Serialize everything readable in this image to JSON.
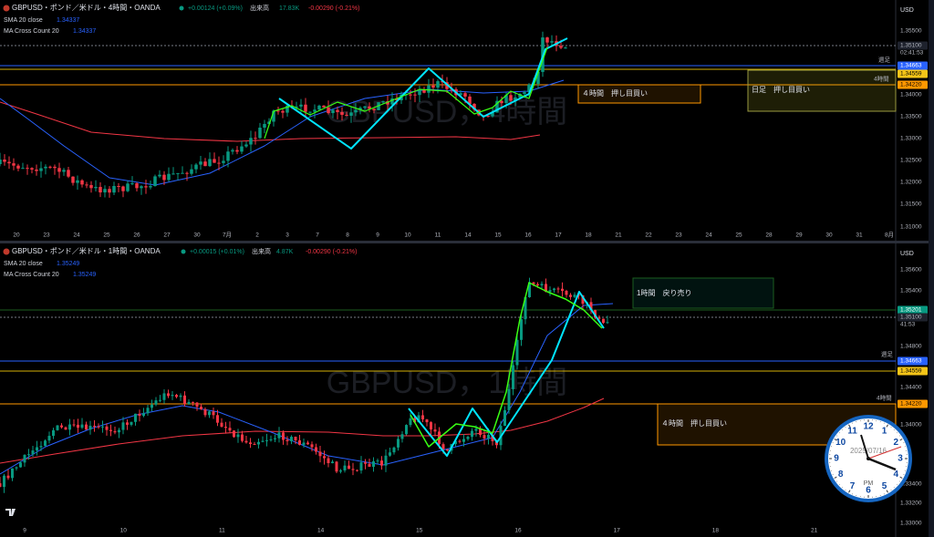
{
  "top_panel": {
    "header": {
      "symbol": "GBPUSD・ポンド／米ドル・4時間・OANDA",
      "change": "+0.00124 (+0.09%)",
      "volume_label": "出来高",
      "volume": "17.83K",
      "day_change": "-0.00290 (-0.21%)"
    },
    "indicators": [
      {
        "name": "SMA 20 close",
        "value": "1.34337"
      },
      {
        "name": "MA Cross Count 20",
        "value": "1.34337"
      }
    ],
    "currency": "USD",
    "price_axis": [
      "1.35500",
      "1.35100",
      "02:41:53",
      "週足",
      "1.34663",
      "1.34559",
      "4時間",
      "1.34220",
      "1.34000",
      "1.33500",
      "1.33000",
      "1.32500",
      "1.32000",
      "1.31500",
      "1.31000"
    ],
    "dates": [
      "20",
      "23",
      "24",
      "25",
      "26",
      "27",
      "30",
      "7月",
      "2",
      "3",
      "7",
      "8",
      "9",
      "10",
      "11",
      "14",
      "15",
      "16",
      "17",
      "18",
      "21",
      "22",
      "23",
      "24",
      "25",
      "28",
      "29",
      "30",
      "31",
      "8月"
    ],
    "zones": [
      "４時間　押し目買い",
      "日足　押し目買い"
    ],
    "watermark": "GBPUSD，4時間"
  },
  "bottom_panel": {
    "header": {
      "symbol": "GBPUSD・ポンド／米ドル・1時間・OANDA",
      "change": "+0.00015 (+0.01%)",
      "volume_label": "出来高",
      "volume": "4.87K",
      "day_change": "-0.00290 (-0.21%)"
    },
    "indicators": [
      {
        "name": "SMA 20 close",
        "value": "1.35249"
      },
      {
        "name": "MA Cross Count 20",
        "value": "1.35249"
      }
    ],
    "currency": "USD",
    "price_axis": [
      "1.35600",
      "1.35400",
      "1.35201",
      "1.35100",
      "41:53",
      "1.34800",
      "週足",
      "1.34663",
      "1.34559",
      "1.34400",
      "4時間",
      "1.34220",
      "1.34000",
      "1.33400",
      "1.33200",
      "1.33000"
    ],
    "dates": [
      "9",
      "10",
      "11",
      "14",
      "15",
      "16",
      "17",
      "18",
      "21"
    ],
    "zones": [
      "1時間　戻り売り",
      "４時間　押し目買い"
    ],
    "watermark": "GBPUSD，1時間"
  },
  "clock": {
    "date": "2025/07/16",
    "period": "PM",
    "numbers": [
      "12",
      "1",
      "2",
      "3",
      "4",
      "5",
      "6",
      "7",
      "8",
      "9",
      "10",
      "11"
    ]
  }
}
